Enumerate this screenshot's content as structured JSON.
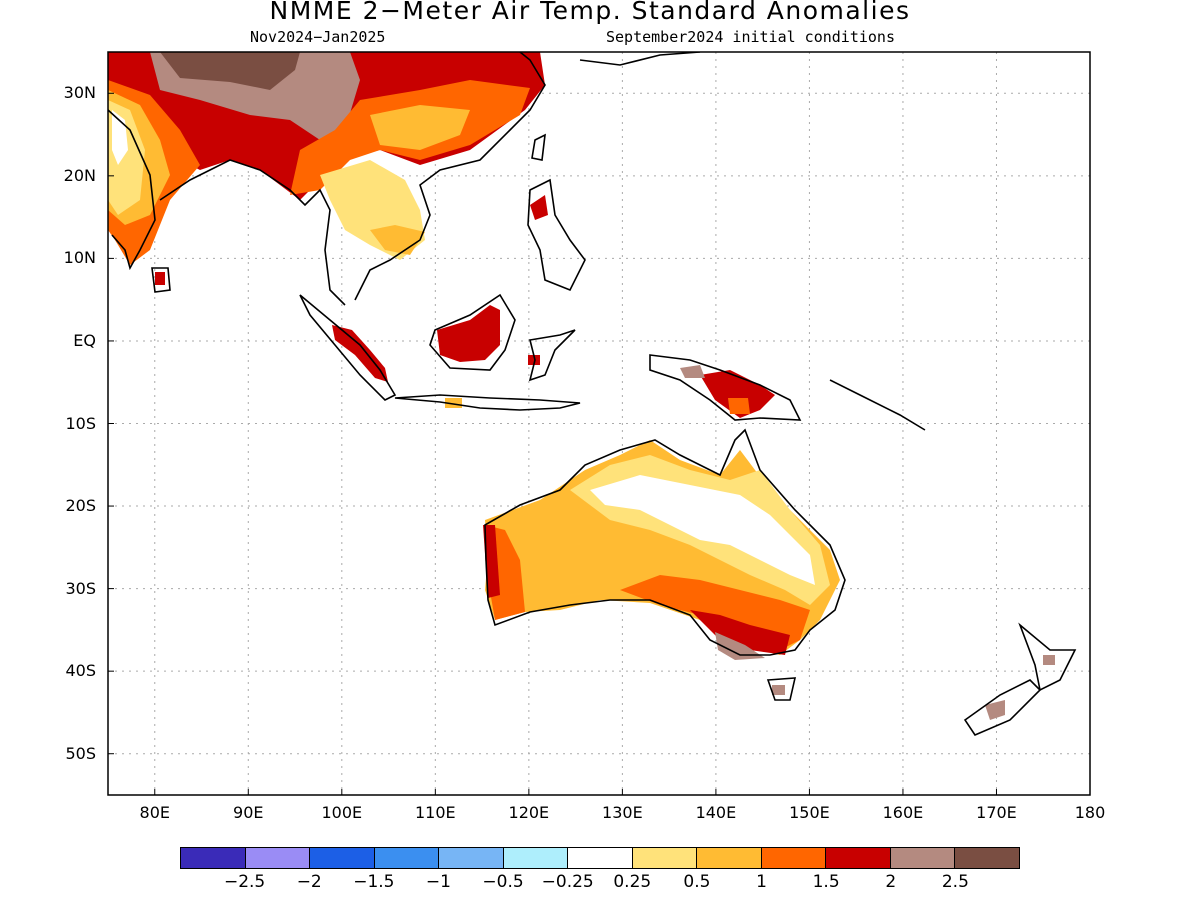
{
  "title": "NMME 2−Meter Air Temp. Standard Anomalies",
  "subtitle_left": "Nov2024−Jan2025",
  "subtitle_right": "September2024 initial conditions",
  "map": {
    "lon_range": [
      75,
      180
    ],
    "lat_range": [
      -55,
      35
    ],
    "lat_ticks": [
      "30N",
      "20N",
      "10N",
      "EQ",
      "10S",
      "20S",
      "30S",
      "40S",
      "50S"
    ],
    "lon_ticks": [
      "80E",
      "90E",
      "100E",
      "110E",
      "120E",
      "130E",
      "140E",
      "150E",
      "160E",
      "170E",
      "180"
    ],
    "grid": "dotted"
  },
  "legend": {
    "colors": [
      "#3a2bb8",
      "#9a8cf5",
      "#1c5fe6",
      "#3b8ff0",
      "#77b5f5",
      "#aeeefc",
      "#ffffff",
      "#ffe27a",
      "#ffbb33",
      "#ff6600",
      "#c80000",
      "#b48a80",
      "#7a4e42"
    ],
    "labels": [
      "−2.5",
      "−2",
      "−1.5",
      "−1",
      "−0.5",
      "−0.25",
      "0.25",
      "0.5",
      "1",
      "1.5",
      "2",
      "2.5"
    ]
  }
}
